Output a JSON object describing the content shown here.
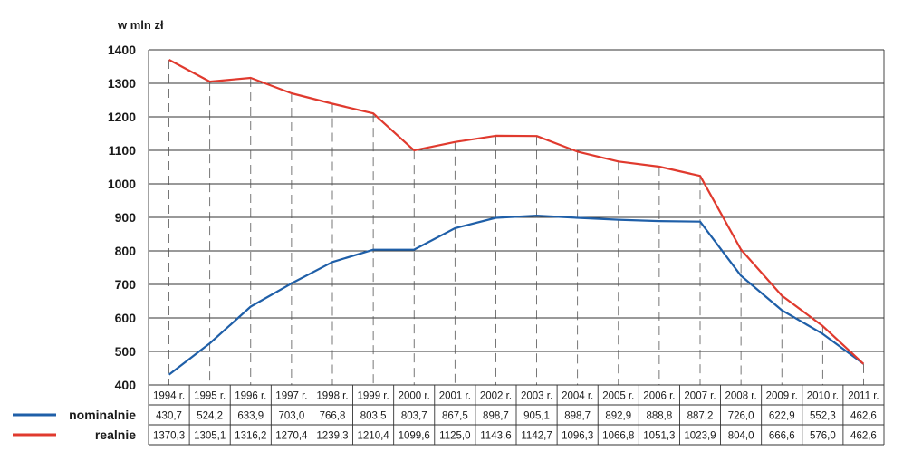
{
  "chart_data": {
    "type": "line",
    "ylabel": "w mln zł",
    "ylim": [
      400,
      1400
    ],
    "yticks": [
      400,
      500,
      600,
      700,
      800,
      900,
      1000,
      1100,
      1200,
      1300,
      1400
    ],
    "grid": true,
    "categories": [
      "1994 r.",
      "1995 r.",
      "1996 r.",
      "1997 r.",
      "1998 r.",
      "1999 r.",
      "2000 r.",
      "2001 r.",
      "2002 r.",
      "2003 r.",
      "2004 r.",
      "2005 r.",
      "2006 r.",
      "2007 r.",
      "2008 r.",
      "2009 r.",
      "2010 r.",
      "2011 r."
    ],
    "series": [
      {
        "name": "nominalnie",
        "color": "#1f5fa8",
        "values": [
          430.7,
          524.2,
          633.9,
          703.0,
          766.8,
          803.5,
          803.7,
          867.5,
          898.7,
          905.1,
          898.7,
          892.9,
          888.8,
          887.2,
          726.0,
          622.9,
          552.3,
          462.6
        ],
        "labels": [
          "430,7",
          "524,2",
          "633,9",
          "703,0",
          "766,8",
          "803,5",
          "803,7",
          "867,5",
          "898,7",
          "905,1",
          "898,7",
          "892,9",
          "888,8",
          "887,2",
          "726,0",
          "622,9",
          "552,3",
          "462,6"
        ]
      },
      {
        "name": "realnie",
        "color": "#e03a2e",
        "values": [
          1370.3,
          1305.1,
          1316.2,
          1270.4,
          1239.3,
          1210.4,
          1099.6,
          1125.0,
          1143.6,
          1142.7,
          1096.3,
          1066.8,
          1051.3,
          1023.9,
          804.0,
          666.6,
          576.0,
          462.6
        ],
        "labels": [
          "1370,3",
          "1305,1",
          "1316,2",
          "1270,4",
          "1239,3",
          "1210,4",
          "1099,6",
          "1125,0",
          "1143,6",
          "1142,7",
          "1096,3",
          "1066,8",
          "1051,3",
          "1023,9",
          "804,0",
          "666,6",
          "576,0",
          "462,6"
        ]
      }
    ]
  }
}
